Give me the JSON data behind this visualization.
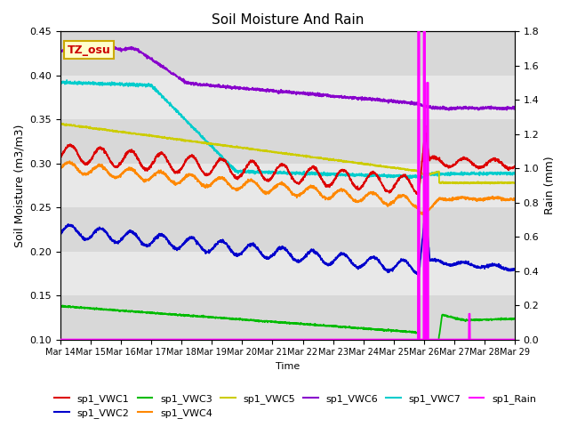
{
  "title": "Soil Moisture And Rain",
  "xlabel": "Time",
  "ylabel_left": "Soil Moisture (m3/m3)",
  "ylabel_right": "Rain (mm)",
  "annotation_text": "TZ_osu",
  "annotation_color": "#cc0000",
  "annotation_bg": "#ffffcc",
  "annotation_border": "#ccaa00",
  "ylim_left": [
    0.1,
    0.45
  ],
  "ylim_right": [
    0.0,
    1.8
  ],
  "bg_color_light": "#e8e8e8",
  "bg_color_dark": "#d0d0d0",
  "fig_bg": "#ffffff",
  "x_tick_labels": [
    "Mar 14",
    "Mar 15",
    "Mar 16",
    "Mar 17",
    "Mar 18",
    "Mar 19",
    "Mar 20",
    "Mar 21",
    "Mar 22",
    "Mar 23",
    "Mar 24",
    "Mar 25",
    "Mar 26",
    "Mar 27",
    "Mar 28",
    "Mar 29"
  ],
  "series": {
    "sp1_VWC1": {
      "color": "#dd0000",
      "label": "sp1_VWC1"
    },
    "sp1_VWC2": {
      "color": "#0000cc",
      "label": "sp1_VWC2"
    },
    "sp1_VWC3": {
      "color": "#00bb00",
      "label": "sp1_VWC3"
    },
    "sp1_VWC4": {
      "color": "#ff8800",
      "label": "sp1_VWC4"
    },
    "sp1_VWC5": {
      "color": "#cccc00",
      "label": "sp1_VWC5"
    },
    "sp1_VWC6": {
      "color": "#8800cc",
      "label": "sp1_VWC6"
    },
    "sp1_VWC7": {
      "color": "#00cccc",
      "label": "sp1_VWC7"
    },
    "sp1_Rain": {
      "color": "#ff00ff",
      "label": "sp1_Rain"
    }
  },
  "legend_order": [
    "sp1_VWC1",
    "sp1_VWC2",
    "sp1_VWC3",
    "sp1_VWC4",
    "sp1_VWC5",
    "sp1_VWC6",
    "sp1_VWC7",
    "sp1_Rain"
  ]
}
